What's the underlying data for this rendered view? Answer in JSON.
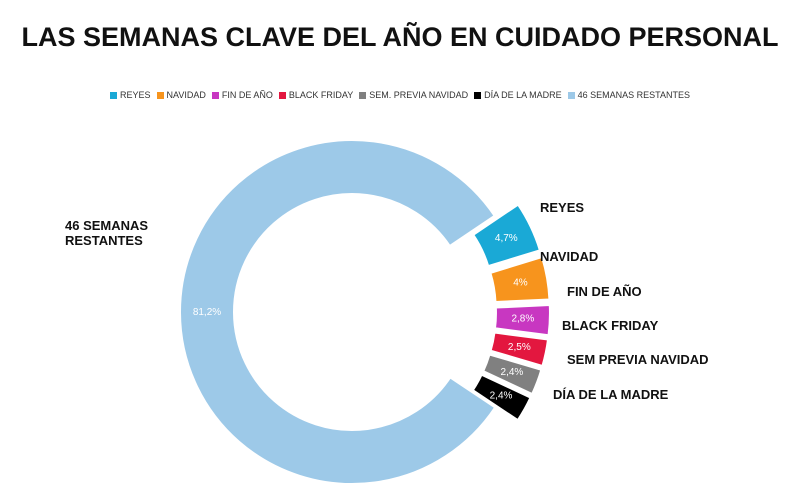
{
  "chart_data": {
    "type": "donut",
    "title": "LAS SEMANAS CLAVE DEL AÑO EN CUIDADO PERSONAL",
    "legend": [
      "REYES",
      "NAVIDAD",
      "FIN DE AÑO",
      "BLACK FRIDAY",
      "SEM. PREVIA NAVIDAD",
      "DÍA DE LA MADRE",
      "46 SEMANAS RESTANTES"
    ],
    "categories": [
      "REYES",
      "NAVIDAD",
      "FIN DE AÑO",
      "BLACK FRIDAY",
      "SEM PREVIA NAVIDAD",
      "DÍA DE LA MADRE",
      "46 SEMANAS RESTANTES"
    ],
    "values": [
      4.7,
      4,
      2.8,
      2.5,
      2.4,
      2.4,
      81.2
    ],
    "value_labels": [
      "4,7%",
      "4%",
      "2,8%",
      "2,5%",
      "2,4%",
      "2,4%",
      "81,2%"
    ],
    "colors": [
      "#1aa9d6",
      "#f7941d",
      "#c837c1",
      "#e3173f",
      "#808080",
      "#000000",
      "#9dc9e8"
    ]
  }
}
